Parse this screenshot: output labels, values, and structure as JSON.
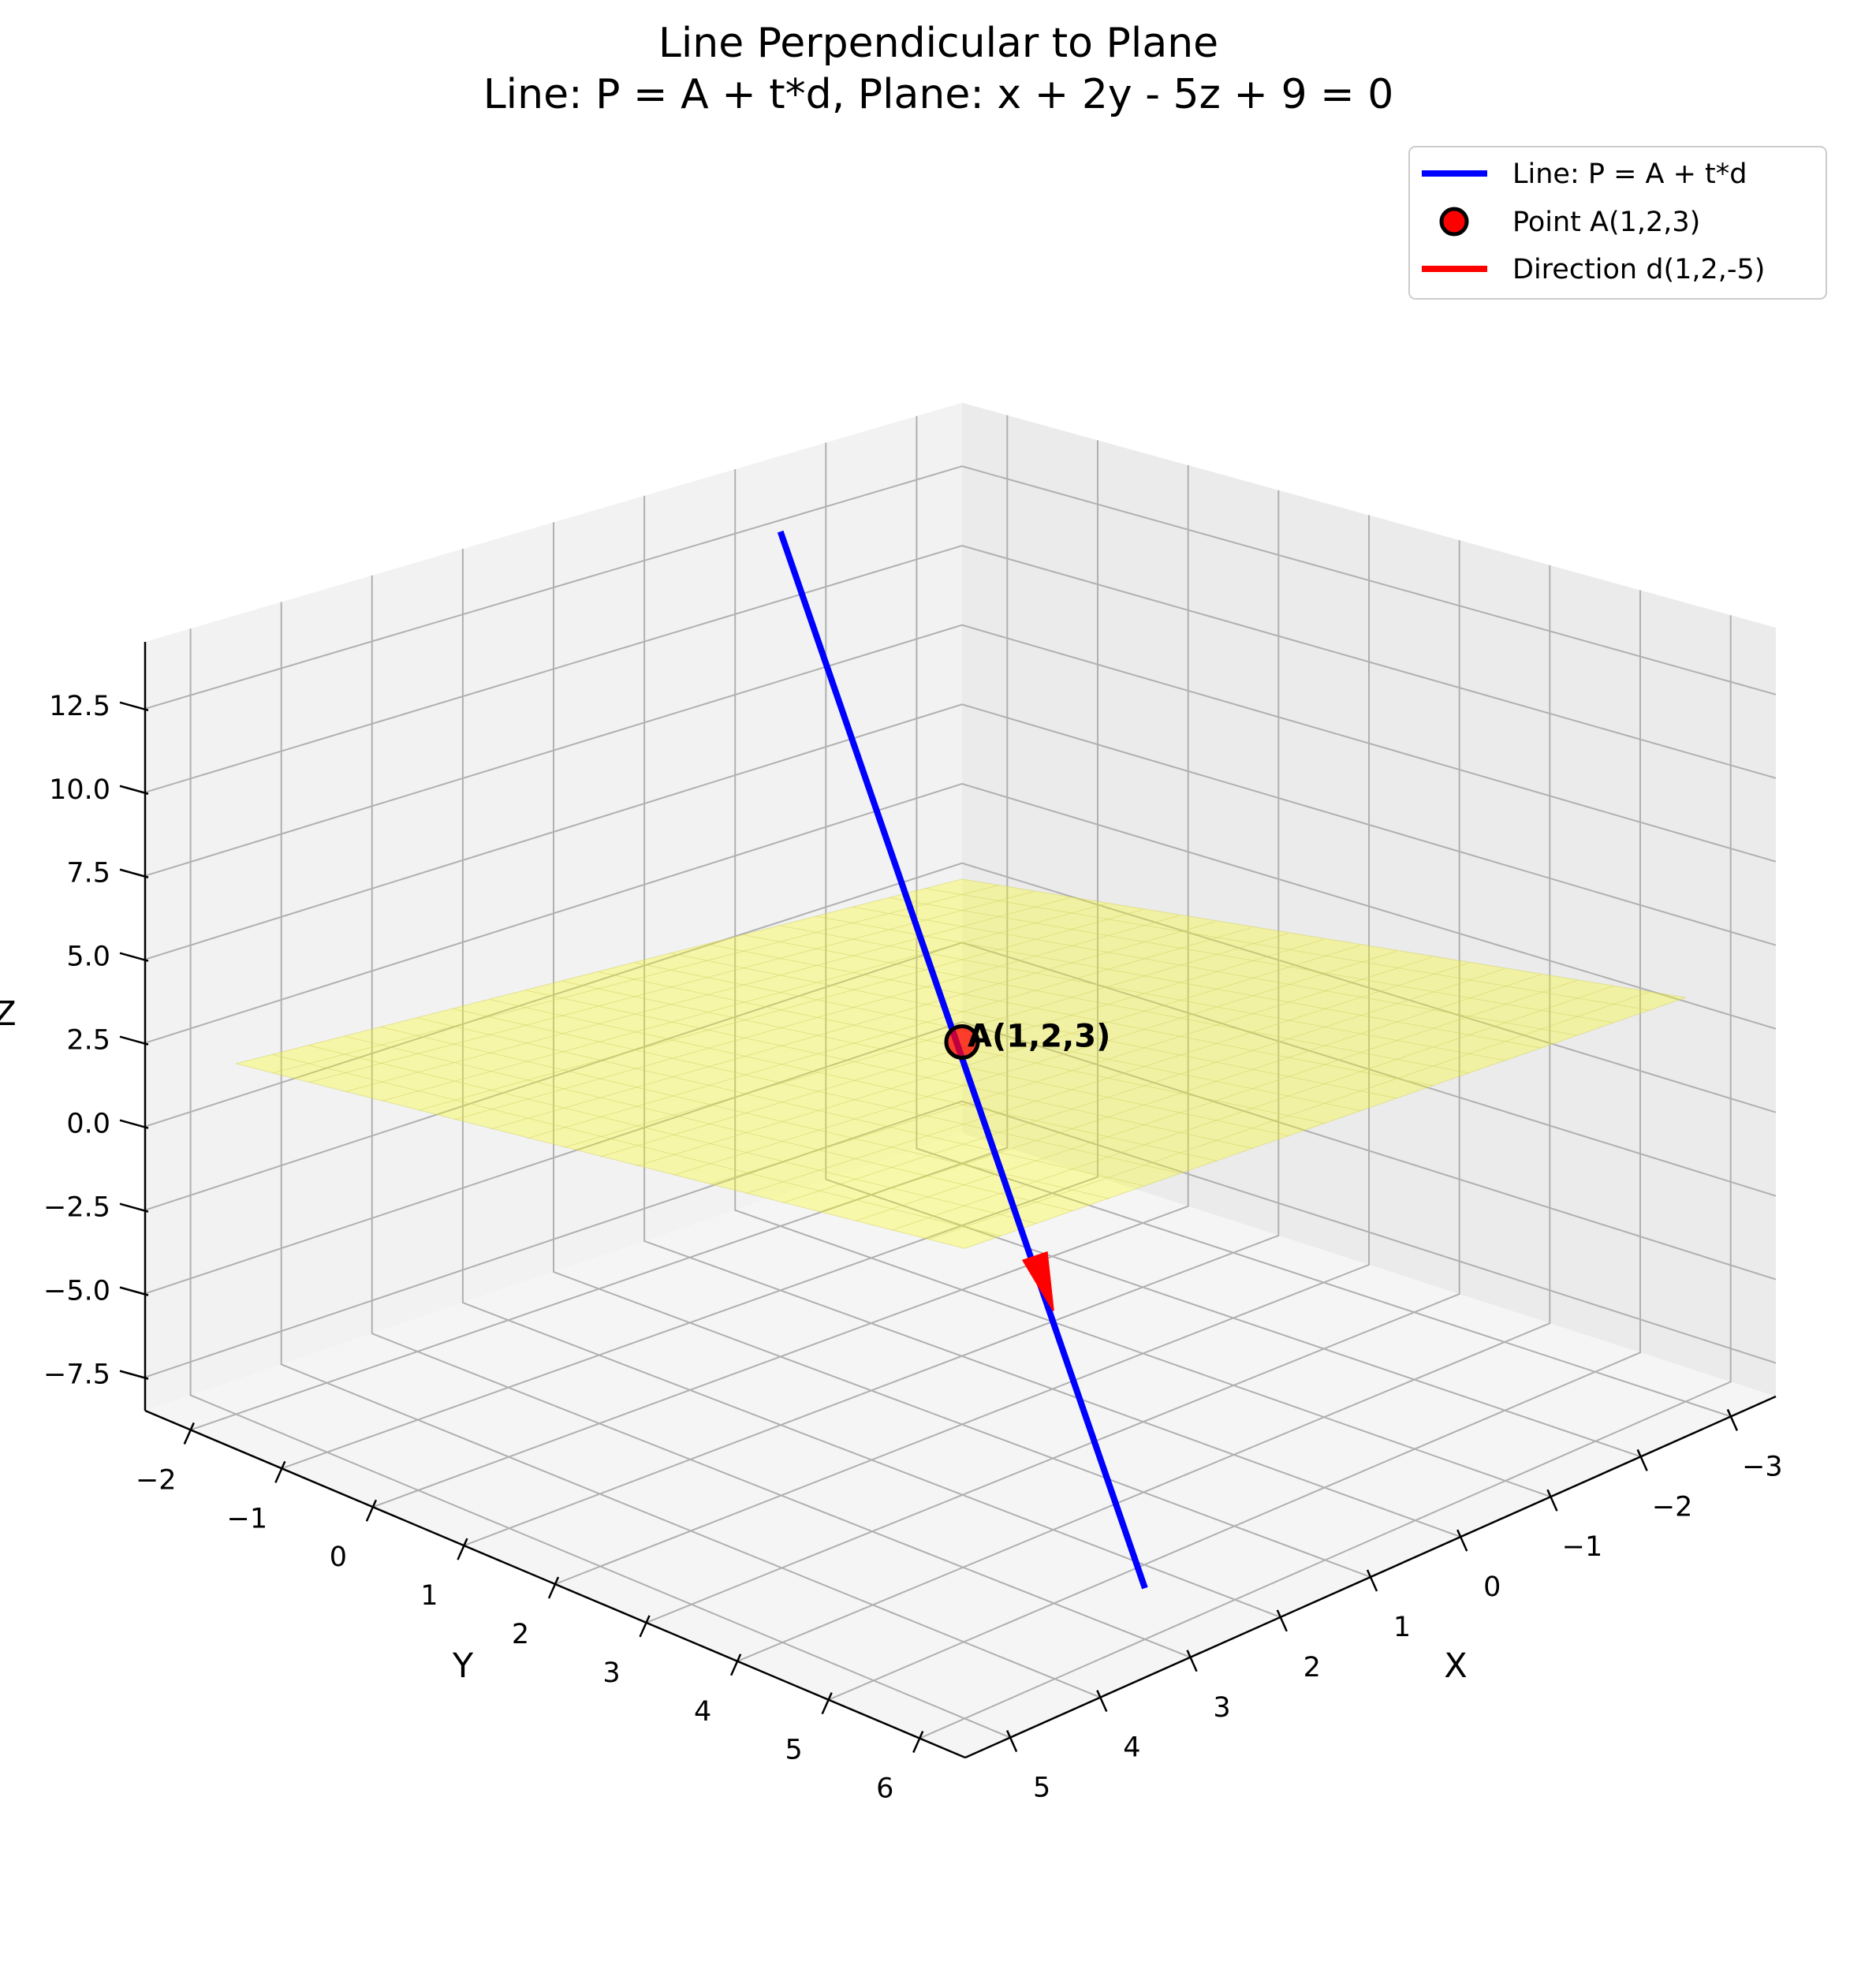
{
  "chart_data": {
    "type": "3d-line-plane",
    "title": "Line Perpendicular to Plane",
    "subtitle": "Line: P = A + t*d, Plane: x + 2y - 5z + 9 = 0",
    "xlabel": "X",
    "ylabel": "Y",
    "zlabel": "Z",
    "xlim": [
      -3.5,
      5.5
    ],
    "ylim": [
      -2.5,
      6.5
    ],
    "zlim": [
      -8.5,
      14.5
    ],
    "xticks": [
      "−3",
      "−2",
      "−1",
      "0",
      "1",
      "2",
      "3",
      "4",
      "5"
    ],
    "xtick_values": [
      -3,
      -2,
      -1,
      0,
      1,
      2,
      3,
      4,
      5
    ],
    "yticks": [
      "−2",
      "−1",
      "0",
      "1",
      "2",
      "3",
      "4",
      "5",
      "6"
    ],
    "ytick_values": [
      -2,
      -1,
      0,
      1,
      2,
      3,
      4,
      5,
      6
    ],
    "zticks": [
      "−7.5",
      "−5.0",
      "−2.5",
      "0.0",
      "2.5",
      "5.0",
      "7.5",
      "10.0",
      "12.5"
    ],
    "ztick_values": [
      -7.5,
      -5.0,
      -2.5,
      0.0,
      2.5,
      5.0,
      7.5,
      10.0,
      12.5
    ],
    "grid": true,
    "legend_position": "top-right",
    "line": {
      "name": "Line: P = A + t*d",
      "color": "#0000ff",
      "t_range": [
        -2,
        2
      ],
      "start": [
        -1,
        -2,
        13
      ],
      "end": [
        3,
        6,
        -7
      ]
    },
    "point": {
      "name": "Point A(1,2,3)",
      "label": "A(1,2,3)",
      "coords": [
        1,
        2,
        3
      ],
      "color": "#ff0000"
    },
    "direction": {
      "name": "Direction d(1,2,-5)",
      "vector": [
        1,
        2,
        -5
      ],
      "color": "#ff0000"
    },
    "plane": {
      "equation": "x + 2y - 5z + 9 = 0",
      "color": "#ffff00",
      "x_range": [
        -3,
        5
      ],
      "y_range": [
        -2,
        6
      ]
    }
  }
}
